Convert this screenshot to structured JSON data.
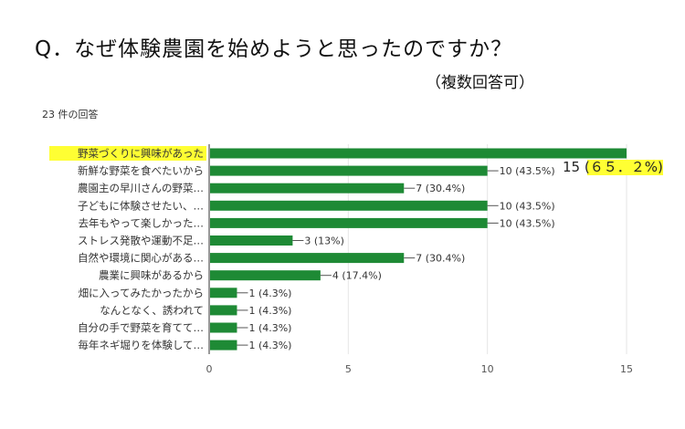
{
  "header": {
    "title": "Q．なぜ体験農園を始めようと思ったのですか？",
    "subtitle": "（複数回答可）",
    "response_count": "23 件の回答"
  },
  "chart_data": {
    "type": "bar",
    "orientation": "horizontal",
    "categories": [
      "野菜づくりに興味があった",
      "新鮮な野菜を食べたいから",
      "農園主の早川さんの野菜…",
      "子どもに体験させたい、…",
      "去年もやって楽しかった…",
      "ストレス発散や運動不足…",
      "自然や環境に関心がある…",
      "農業に興味があるから",
      "畑に入ってみたかったから",
      "なんとなく、誘われて",
      "自分の手で野菜を育てて…",
      "毎年ネギ堀りを体験して…"
    ],
    "values": [
      15,
      10,
      7,
      10,
      10,
      3,
      7,
      4,
      1,
      1,
      1,
      1
    ],
    "data_labels": [
      "15 (",
      "10 (43.5%)",
      "7 (30.4%)",
      "10 (43.5%)",
      "10 (43.5%)",
      "3 (13%)",
      "7 (30.4%)",
      "4 (17.4%)",
      "1 (4.3%)",
      "1 (4.3%)",
      "1 (4.3%)",
      "1 (4.3%)"
    ],
    "highlight_label_suffix": "６５．２%",
    "highlight_label_close": ")",
    "xlim": [
      0,
      15
    ],
    "xticks": [
      "0",
      "5",
      "10",
      "15"
    ],
    "grid": true,
    "colors": {
      "bar": "#1e8a35",
      "highlight": "#ffff33"
    }
  }
}
